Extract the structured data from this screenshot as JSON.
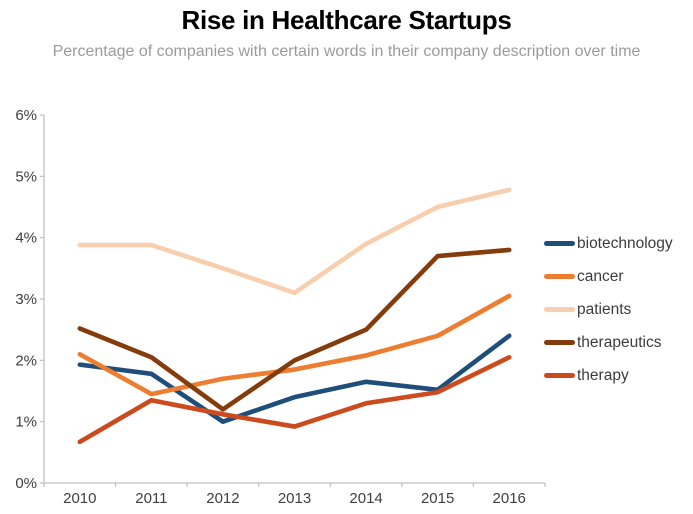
{
  "header": {
    "title": "Rise in Healthcare Startups",
    "subtitle": "Percentage of companies with certain words in their company description over time"
  },
  "colors": {
    "title": "#000000",
    "subtitle": "#9B9B9B",
    "axis": "#BFBFBF",
    "tick_label": "#3F3F3F",
    "legend_label": "#3D3D3D"
  },
  "chart_data": {
    "type": "line",
    "title": "Rise in Healthcare Startups",
    "subtitle": "Percentage of companies with certain words in their company description over time",
    "categories": [
      "2010",
      "2011",
      "2012",
      "2013",
      "2014",
      "2015",
      "2016"
    ],
    "series": [
      {
        "name": "biotechnology",
        "color": "#1F4E79",
        "values": [
          1.93,
          1.78,
          1.0,
          1.4,
          1.65,
          1.52,
          2.4
        ]
      },
      {
        "name": "cancer",
        "color": "#ED7D31",
        "values": [
          2.1,
          1.45,
          1.7,
          1.85,
          2.08,
          2.4,
          3.05
        ]
      },
      {
        "name": "patients",
        "color": "#F8CFAE",
        "values": [
          3.88,
          3.88,
          3.5,
          3.1,
          3.9,
          4.5,
          4.78
        ]
      },
      {
        "name": "therapeutics",
        "color": "#843C0C",
        "values": [
          2.52,
          2.05,
          1.2,
          2.0,
          2.5,
          3.7,
          3.8
        ]
      },
      {
        "name": "therapy",
        "color": "#CC4B1E",
        "values": [
          0.67,
          1.35,
          1.12,
          0.92,
          1.3,
          1.48,
          2.05
        ]
      }
    ],
    "xlabel": "",
    "ylabel": "",
    "ylim": [
      0,
      6
    ],
    "yticks": [
      "0%",
      "1%",
      "2%",
      "3%",
      "4%",
      "5%",
      "6%"
    ],
    "grid": false,
    "legend_position": "right"
  }
}
